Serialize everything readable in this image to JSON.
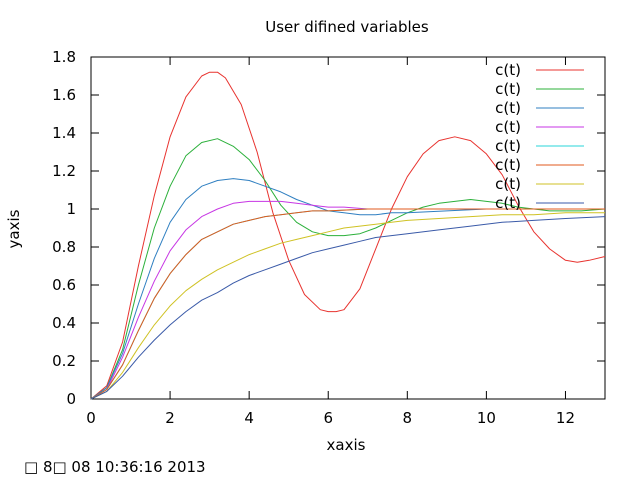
{
  "chart_data": {
    "type": "line",
    "title": "User difined variables",
    "xlabel": "xaxis",
    "ylabel": "yaxis",
    "xlim": [
      0,
      13
    ],
    "ylim": [
      0,
      1.8
    ],
    "xticks": [
      "0",
      "2",
      "4",
      "6",
      "8",
      "10",
      "12"
    ],
    "yticks": [
      "0",
      "0.2",
      "0.4",
      "0.6",
      "0.8",
      "1",
      "1.2",
      "1.4",
      "1.6",
      "1.8"
    ],
    "grid": false,
    "legend_position": "top-right",
    "series": [
      {
        "name": "c(t)",
        "color": "#e8332f",
        "x": [
          0,
          0.4,
          0.8,
          1.2,
          1.6,
          2.0,
          2.4,
          2.8,
          3.0,
          3.2,
          3.4,
          3.8,
          4.2,
          4.6,
          5.0,
          5.4,
          5.8,
          6.0,
          6.2,
          6.4,
          6.8,
          7.2,
          7.6,
          8.0,
          8.4,
          8.8,
          9.2,
          9.6,
          10.0,
          10.4,
          10.8,
          11.2,
          11.6,
          12.0,
          12.3,
          12.6,
          13.0
        ],
        "y": [
          0,
          0.07,
          0.3,
          0.7,
          1.07,
          1.38,
          1.59,
          1.7,
          1.72,
          1.72,
          1.69,
          1.55,
          1.3,
          0.98,
          0.73,
          0.55,
          0.47,
          0.46,
          0.46,
          0.47,
          0.58,
          0.79,
          1.0,
          1.17,
          1.29,
          1.36,
          1.38,
          1.36,
          1.29,
          1.18,
          1.02,
          0.88,
          0.79,
          0.73,
          0.72,
          0.73,
          0.75
        ]
      },
      {
        "name": "c(t)",
        "color": "#2bb03a",
        "x": [
          0,
          0.4,
          0.8,
          1.2,
          1.6,
          2.0,
          2.4,
          2.8,
          3.2,
          3.6,
          4.0,
          4.4,
          4.8,
          5.2,
          5.6,
          6.0,
          6.4,
          6.8,
          7.2,
          7.6,
          8.0,
          8.4,
          8.8,
          9.2,
          9.6,
          10.0,
          10.4,
          10.8,
          11.2,
          11.6,
          12.0,
          12.4,
          13.0
        ],
        "y": [
          0,
          0.06,
          0.26,
          0.6,
          0.9,
          1.12,
          1.28,
          1.35,
          1.37,
          1.33,
          1.26,
          1.15,
          1.02,
          0.93,
          0.88,
          0.86,
          0.86,
          0.87,
          0.9,
          0.94,
          0.98,
          1.01,
          1.03,
          1.04,
          1.05,
          1.04,
          1.03,
          1.01,
          1.0,
          0.99,
          0.99,
          0.99,
          1.0
        ]
      },
      {
        "name": "c(t)",
        "color": "#2f7fc1",
        "x": [
          0,
          0.4,
          0.8,
          1.2,
          1.6,
          2.0,
          2.4,
          2.8,
          3.2,
          3.6,
          4.0,
          4.4,
          4.8,
          5.2,
          5.6,
          6.0,
          6.4,
          6.8,
          7.2,
          7.6,
          8.0,
          9.0,
          10.0,
          11.0,
          12.0,
          13.0
        ],
        "y": [
          0,
          0.06,
          0.24,
          0.5,
          0.74,
          0.93,
          1.05,
          1.12,
          1.15,
          1.16,
          1.15,
          1.12,
          1.09,
          1.05,
          1.02,
          0.99,
          0.98,
          0.97,
          0.97,
          0.98,
          0.98,
          0.99,
          1.0,
          1.0,
          1.0,
          1.0
        ]
      },
      {
        "name": "c(t)",
        "color": "#c736e4",
        "x": [
          0,
          0.4,
          0.8,
          1.2,
          1.6,
          2.0,
          2.4,
          2.8,
          3.2,
          3.6,
          4.0,
          4.4,
          4.8,
          5.2,
          5.6,
          6.0,
          6.4,
          7.0,
          8.0,
          9.0,
          10.0,
          11.0,
          12.0,
          13.0
        ],
        "y": [
          0,
          0.05,
          0.22,
          0.43,
          0.62,
          0.78,
          0.89,
          0.96,
          1.0,
          1.03,
          1.04,
          1.04,
          1.04,
          1.03,
          1.02,
          1.01,
          1.01,
          1.0,
          1.0,
          1.0,
          1.0,
          1.0,
          1.0,
          1.0
        ]
      },
      {
        "name": "c(t)",
        "color": "#2ad4d8",
        "x": [
          0,
          0.4,
          0.8,
          1.2,
          1.6,
          2.0,
          2.4,
          2.8,
          3.2,
          3.6,
          4.0,
          4.4,
          4.8,
          5.2,
          5.6,
          6.0,
          7.0,
          8.0,
          9.0,
          10.0,
          11.0,
          12.0,
          13.0
        ],
        "y": [
          0,
          0.05,
          0.18,
          0.36,
          0.53,
          0.66,
          0.76,
          0.84,
          0.88,
          0.92,
          0.94,
          0.96,
          0.97,
          0.98,
          0.99,
          0.99,
          1.0,
          1.0,
          1.0,
          1.0,
          1.0,
          1.0,
          1.0
        ]
      },
      {
        "name": "c(t)",
        "color": "#e05a1c",
        "x": [
          0,
          0.4,
          0.8,
          1.2,
          1.6,
          2.0,
          2.4,
          2.8,
          3.2,
          3.6,
          4.0,
          4.4,
          4.8,
          5.2,
          5.6,
          6.0,
          7.0,
          8.0,
          9.0,
          10.0,
          11.0,
          12.0,
          13.0
        ],
        "y": [
          0,
          0.05,
          0.18,
          0.36,
          0.53,
          0.66,
          0.76,
          0.84,
          0.88,
          0.92,
          0.94,
          0.96,
          0.97,
          0.98,
          0.99,
          0.99,
          1.0,
          1.0,
          1.0,
          1.0,
          1.0,
          1.0,
          1.0
        ]
      },
      {
        "name": "c(t)",
        "color": "#cfc224",
        "x": [
          0,
          0.4,
          0.8,
          1.2,
          1.6,
          2.0,
          2.4,
          2.8,
          3.2,
          3.6,
          4.0,
          4.4,
          4.8,
          5.2,
          5.6,
          6.0,
          6.4,
          6.8,
          7.2,
          7.6,
          8.0,
          8.8,
          9.6,
          10.4,
          11.2,
          12.0,
          13.0
        ],
        "y": [
          0,
          0.04,
          0.14,
          0.27,
          0.39,
          0.49,
          0.57,
          0.63,
          0.68,
          0.72,
          0.76,
          0.79,
          0.82,
          0.84,
          0.86,
          0.88,
          0.9,
          0.91,
          0.92,
          0.93,
          0.94,
          0.95,
          0.96,
          0.97,
          0.97,
          0.98,
          0.98
        ]
      },
      {
        "name": "c(t)",
        "color": "#3a5aa8",
        "x": [
          0,
          0.4,
          0.8,
          1.2,
          1.6,
          2.0,
          2.4,
          2.8,
          3.2,
          3.6,
          4.0,
          4.4,
          4.8,
          5.2,
          5.6,
          6.0,
          6.4,
          6.8,
          7.2,
          7.6,
          8.0,
          8.8,
          9.6,
          10.4,
          11.2,
          12.0,
          13.0
        ],
        "y": [
          0,
          0.04,
          0.12,
          0.22,
          0.31,
          0.39,
          0.46,
          0.52,
          0.56,
          0.61,
          0.65,
          0.68,
          0.71,
          0.74,
          0.77,
          0.79,
          0.81,
          0.83,
          0.85,
          0.86,
          0.87,
          0.89,
          0.91,
          0.93,
          0.94,
          0.95,
          0.96
        ]
      }
    ]
  },
  "footer": {
    "timestamp": "□ 8□ 08 10:36:16 2013"
  }
}
